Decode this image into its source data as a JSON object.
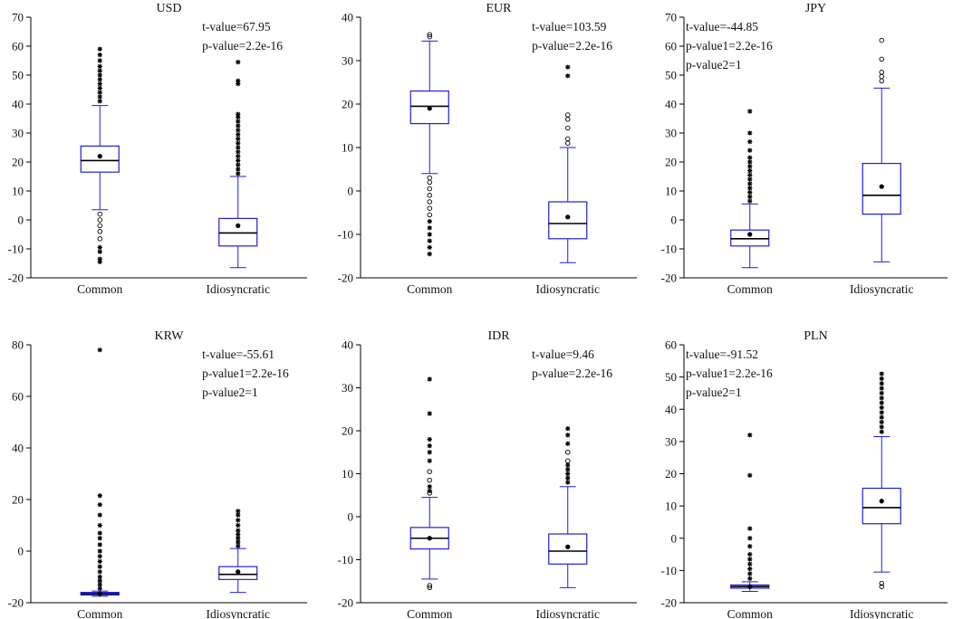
{
  "figure": {
    "colors": {
      "box": "#1f1fd6",
      "median": "#000000",
      "axis": "#000000",
      "text": "#111111"
    }
  },
  "chart_data": [
    {
      "type": "box",
      "title": "USD",
      "categories": [
        "Common",
        "Idiosyncratic"
      ],
      "ylim": [
        -20,
        70
      ],
      "yticks": [
        -20,
        -10,
        0,
        10,
        20,
        30,
        40,
        50,
        60,
        70
      ],
      "stats": [
        "t-value=67.95",
        "p-value=2.2e-16"
      ],
      "boxes": [
        {
          "q1": 16.5,
          "median": 20.5,
          "q3": 25.5,
          "mean": 22,
          "whisker_low": 3.5,
          "whisker_high": 39.5,
          "outliers": [
            {
              "v": -14.5,
              "m": "star"
            },
            {
              "v": -13.5,
              "m": "star"
            },
            {
              "v": -11,
              "m": "star"
            },
            {
              "v": -9.5,
              "m": "star"
            },
            {
              "v": -6.5,
              "m": "circle"
            },
            {
              "v": -4,
              "m": "circle"
            },
            {
              "v": -2,
              "m": "circle"
            },
            {
              "v": 0,
              "m": "circle"
            },
            {
              "v": 2,
              "m": "circle"
            },
            {
              "v": 41,
              "m": "star"
            },
            {
              "v": 42.5,
              "m": "star"
            },
            {
              "v": 44,
              "m": "star"
            },
            {
              "v": 45.5,
              "m": "star"
            },
            {
              "v": 47,
              "m": "star"
            },
            {
              "v": 48.5,
              "m": "star"
            },
            {
              "v": 50,
              "m": "star"
            },
            {
              "v": 51.5,
              "m": "star"
            },
            {
              "v": 53,
              "m": "star"
            },
            {
              "v": 55,
              "m": "star"
            },
            {
              "v": 57,
              "m": "star"
            },
            {
              "v": 59,
              "m": "star"
            }
          ]
        },
        {
          "q1": -9,
          "median": -4.5,
          "q3": 0.5,
          "mean": -2,
          "whisker_low": -16.5,
          "whisker_high": 15,
          "outliers": [
            {
              "v": 16,
              "m": "star"
            },
            {
              "v": 17.5,
              "m": "star"
            },
            {
              "v": 19,
              "m": "star"
            },
            {
              "v": 20.5,
              "m": "star"
            },
            {
              "v": 22,
              "m": "star"
            },
            {
              "v": 23.5,
              "m": "star"
            },
            {
              "v": 25,
              "m": "star"
            },
            {
              "v": 26.5,
              "m": "star"
            },
            {
              "v": 28,
              "m": "star"
            },
            {
              "v": 29.5,
              "m": "star"
            },
            {
              "v": 31,
              "m": "star"
            },
            {
              "v": 32.5,
              "m": "star"
            },
            {
              "v": 34,
              "m": "star"
            },
            {
              "v": 35.5,
              "m": "star"
            },
            {
              "v": 36.5,
              "m": "star"
            },
            {
              "v": 47,
              "m": "star"
            },
            {
              "v": 48,
              "m": "star"
            },
            {
              "v": 54.5,
              "m": "star"
            }
          ]
        }
      ]
    },
    {
      "type": "box",
      "title": "EUR",
      "categories": [
        "Common",
        "Idiosyncratic"
      ],
      "ylim": [
        -20,
        40
      ],
      "yticks": [
        -20,
        -10,
        0,
        10,
        20,
        30,
        40
      ],
      "stats": [
        "t-value=103.59",
        "p-value=2.2e-16"
      ],
      "boxes": [
        {
          "q1": 15.5,
          "median": 19.5,
          "q3": 23,
          "mean": 19,
          "whisker_low": 4,
          "whisker_high": 34.5,
          "outliers": [
            {
              "v": -14.5,
              "m": "star"
            },
            {
              "v": -13,
              "m": "star"
            },
            {
              "v": -11.5,
              "m": "star"
            },
            {
              "v": -10,
              "m": "star"
            },
            {
              "v": -8.5,
              "m": "star"
            },
            {
              "v": -7,
              "m": "star"
            },
            {
              "v": -5.5,
              "m": "circle"
            },
            {
              "v": -4,
              "m": "circle"
            },
            {
              "v": -2.5,
              "m": "circle"
            },
            {
              "v": -1,
              "m": "circle"
            },
            {
              "v": 0.5,
              "m": "circle"
            },
            {
              "v": 2,
              "m": "circle"
            },
            {
              "v": 3,
              "m": "circle"
            },
            {
              "v": 35.5,
              "m": "circle"
            },
            {
              "v": 36,
              "m": "circle"
            }
          ]
        },
        {
          "q1": -11,
          "median": -7.5,
          "q3": -2.5,
          "mean": -6,
          "whisker_low": -16.5,
          "whisker_high": 10,
          "outliers": [
            {
              "v": 11,
              "m": "circle"
            },
            {
              "v": 12,
              "m": "circle"
            },
            {
              "v": 14.5,
              "m": "circle"
            },
            {
              "v": 16.5,
              "m": "circle"
            },
            {
              "v": 17.5,
              "m": "circle"
            },
            {
              "v": 26.5,
              "m": "star"
            },
            {
              "v": 28.5,
              "m": "star"
            }
          ]
        }
      ]
    },
    {
      "type": "box",
      "title": "JPY",
      "categories": [
        "Common",
        "Idiosyncratic"
      ],
      "ylim": [
        -20,
        70
      ],
      "yticks": [
        -20,
        -10,
        0,
        10,
        20,
        30,
        40,
        50,
        60,
        70
      ],
      "stats": [
        "t-value=-44.85",
        "p-value1=2.2e-16",
        "p-value2=1"
      ],
      "boxes": [
        {
          "q1": -9,
          "median": -6.5,
          "q3": -3.5,
          "mean": -5,
          "whisker_low": -16.5,
          "whisker_high": 5.5,
          "outliers": [
            {
              "v": 6.5,
              "m": "star"
            },
            {
              "v": 8,
              "m": "star"
            },
            {
              "v": 9.5,
              "m": "star"
            },
            {
              "v": 11,
              "m": "star"
            },
            {
              "v": 12.5,
              "m": "star"
            },
            {
              "v": 14,
              "m": "star"
            },
            {
              "v": 15.5,
              "m": "star"
            },
            {
              "v": 17,
              "m": "star"
            },
            {
              "v": 18.5,
              "m": "star"
            },
            {
              "v": 20,
              "m": "star"
            },
            {
              "v": 21.5,
              "m": "star"
            },
            {
              "v": 24,
              "m": "star"
            },
            {
              "v": 27,
              "m": "star"
            },
            {
              "v": 30,
              "m": "star"
            },
            {
              "v": 37.5,
              "m": "star"
            }
          ]
        },
        {
          "q1": 2,
          "median": 8.5,
          "q3": 19.5,
          "mean": 11.5,
          "whisker_low": -14.5,
          "whisker_high": 45.5,
          "outliers": [
            {
              "v": 48,
              "m": "circle"
            },
            {
              "v": 49.5,
              "m": "circle"
            },
            {
              "v": 51,
              "m": "circle"
            },
            {
              "v": 55.5,
              "m": "circle"
            },
            {
              "v": 62,
              "m": "circle"
            }
          ]
        }
      ]
    },
    {
      "type": "box",
      "title": "KRW",
      "categories": [
        "Common",
        "Idiosyncratic"
      ],
      "ylim": [
        -20,
        80
      ],
      "yticks": [
        -20,
        0,
        20,
        40,
        60,
        80
      ],
      "stats": [
        "t-value=-55.61",
        "p-value1=2.2e-16",
        "p-value2=1"
      ],
      "boxes": [
        {
          "q1": -17,
          "median": -16.5,
          "q3": -16,
          "mean": -16.5,
          "whisker_low": -17.5,
          "whisker_high": -15.5,
          "outliers": [
            {
              "v": -14.5,
              "m": "star"
            },
            {
              "v": -13,
              "m": "star"
            },
            {
              "v": -11.5,
              "m": "star"
            },
            {
              "v": -10,
              "m": "star"
            },
            {
              "v": -8,
              "m": "star"
            },
            {
              "v": -6,
              "m": "star"
            },
            {
              "v": -4,
              "m": "star"
            },
            {
              "v": -2,
              "m": "star"
            },
            {
              "v": 0,
              "m": "star"
            },
            {
              "v": 2.5,
              "m": "star"
            },
            {
              "v": 5,
              "m": "star"
            },
            {
              "v": 7,
              "m": "star"
            },
            {
              "v": 10,
              "m": "star"
            },
            {
              "v": 14,
              "m": "star"
            },
            {
              "v": 18,
              "m": "star"
            },
            {
              "v": 21.5,
              "m": "star"
            },
            {
              "v": 78,
              "m": "star"
            }
          ]
        },
        {
          "q1": -11,
          "median": -9,
          "q3": -6,
          "mean": -8,
          "whisker_low": -16,
          "whisker_high": 1,
          "outliers": [
            {
              "v": 2,
              "m": "star"
            },
            {
              "v": 3.5,
              "m": "star"
            },
            {
              "v": 5,
              "m": "star"
            },
            {
              "v": 6.5,
              "m": "star"
            },
            {
              "v": 8,
              "m": "star"
            },
            {
              "v": 10,
              "m": "star"
            },
            {
              "v": 12,
              "m": "star"
            },
            {
              "v": 14,
              "m": "star"
            },
            {
              "v": 15.5,
              "m": "star"
            }
          ]
        }
      ]
    },
    {
      "type": "box",
      "title": "IDR",
      "categories": [
        "Common",
        "Idiosyncratic"
      ],
      "ylim": [
        -20,
        40
      ],
      "yticks": [
        -20,
        -10,
        0,
        10,
        20,
        30,
        40
      ],
      "stats": [
        "t-value=9.46",
        "p-value=2.2e-16"
      ],
      "boxes": [
        {
          "q1": -7.5,
          "median": -5,
          "q3": -2.5,
          "mean": -5,
          "whisker_low": -14.5,
          "whisker_high": 4.5,
          "outliers": [
            {
              "v": -16.5,
              "m": "circle"
            },
            {
              "v": -16,
              "m": "circle"
            },
            {
              "v": 5.5,
              "m": "circle"
            },
            {
              "v": 6,
              "m": "star"
            },
            {
              "v": 7,
              "m": "star"
            },
            {
              "v": 8.5,
              "m": "circle"
            },
            {
              "v": 10.5,
              "m": "circle"
            },
            {
              "v": 13,
              "m": "star"
            },
            {
              "v": 15,
              "m": "star"
            },
            {
              "v": 16.5,
              "m": "star"
            },
            {
              "v": 18,
              "m": "star"
            },
            {
              "v": 24,
              "m": "star"
            },
            {
              "v": 32,
              "m": "star"
            }
          ]
        },
        {
          "q1": -11,
          "median": -8,
          "q3": -4,
          "mean": -7,
          "whisker_low": -16.5,
          "whisker_high": 7,
          "outliers": [
            {
              "v": 8,
              "m": "star"
            },
            {
              "v": 9,
              "m": "star"
            },
            {
              "v": 10,
              "m": "star"
            },
            {
              "v": 11,
              "m": "star"
            },
            {
              "v": 12,
              "m": "star"
            },
            {
              "v": 13,
              "m": "circle"
            },
            {
              "v": 15,
              "m": "circle"
            },
            {
              "v": 17,
              "m": "star"
            },
            {
              "v": 19,
              "m": "star"
            },
            {
              "v": 20.5,
              "m": "star"
            }
          ]
        }
      ]
    },
    {
      "type": "box",
      "title": "PLN",
      "categories": [
        "Common",
        "Idiosyncratic"
      ],
      "ylim": [
        -20,
        60
      ],
      "yticks": [
        -20,
        -10,
        0,
        10,
        20,
        30,
        40,
        50,
        60
      ],
      "stats": [
        "t-value=-91.52",
        "p-value1=2.2e-16",
        "p-value2=1"
      ],
      "boxes": [
        {
          "q1": -15.5,
          "median": -15,
          "q3": -14.5,
          "mean": -15,
          "whisker_low": -16.5,
          "whisker_high": -13.5,
          "outliers": [
            {
              "v": -12.5,
              "m": "star"
            },
            {
              "v": -11,
              "m": "star"
            },
            {
              "v": -9.5,
              "m": "star"
            },
            {
              "v": -8,
              "m": "star"
            },
            {
              "v": -6.5,
              "m": "star"
            },
            {
              "v": -5,
              "m": "star"
            },
            {
              "v": -2.5,
              "m": "star"
            },
            {
              "v": 0,
              "m": "star"
            },
            {
              "v": 3,
              "m": "star"
            },
            {
              "v": 19.5,
              "m": "star"
            },
            {
              "v": 32,
              "m": "star"
            }
          ]
        },
        {
          "q1": 4.5,
          "median": 9.5,
          "q3": 15.5,
          "mean": 11.5,
          "whisker_low": -10.5,
          "whisker_high": 31.5,
          "outliers": [
            {
              "v": -15,
              "m": "circle"
            },
            {
              "v": -14,
              "m": "circle"
            },
            {
              "v": 33,
              "m": "star"
            },
            {
              "v": 34.5,
              "m": "star"
            },
            {
              "v": 36,
              "m": "star"
            },
            {
              "v": 37.5,
              "m": "star"
            },
            {
              "v": 39,
              "m": "star"
            },
            {
              "v": 40.5,
              "m": "star"
            },
            {
              "v": 42,
              "m": "star"
            },
            {
              "v": 43.5,
              "m": "star"
            },
            {
              "v": 45,
              "m": "star"
            },
            {
              "v": 46.5,
              "m": "star"
            },
            {
              "v": 48,
              "m": "star"
            },
            {
              "v": 49.5,
              "m": "star"
            },
            {
              "v": 51,
              "m": "star"
            }
          ]
        }
      ]
    }
  ]
}
